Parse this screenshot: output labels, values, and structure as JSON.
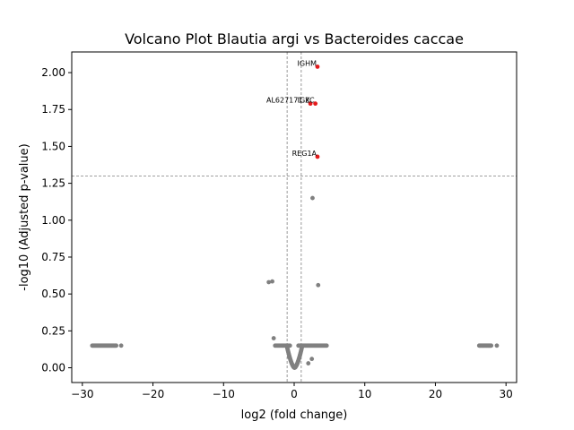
{
  "chart_data": {
    "type": "scatter",
    "title": "Volcano Plot Blautia argi vs Bacteroides caccae",
    "xlabel": "log2 (fold change)",
    "ylabel": "-log10 (Adjusted p-value)",
    "xlim": [
      -31.5,
      31.5
    ],
    "ylim": [
      -0.1,
      2.14
    ],
    "xticks": [
      -30,
      -20,
      -10,
      0,
      10,
      20,
      30
    ],
    "xtick_labels": [
      "−30",
      "−20",
      "−10",
      "0",
      "10",
      "20",
      "30"
    ],
    "yticks": [
      0.0,
      0.25,
      0.5,
      0.75,
      1.0,
      1.25,
      1.5,
      1.75,
      2.0
    ],
    "ytick_labels": [
      "0.00",
      "0.25",
      "0.50",
      "0.75",
      "1.00",
      "1.25",
      "1.50",
      "1.75",
      "2.00"
    ],
    "grid": false,
    "thresholds": {
      "x": [
        -1,
        1
      ],
      "y": 1.3
    },
    "colors": {
      "significant": "#e41a1c",
      "nonsignificant": "#808080",
      "threshold": "#808080"
    },
    "significant_points": [
      {
        "label": "IGHM",
        "x": 3.3,
        "y": 2.04
      },
      {
        "label": "AL627171.2",
        "x": 2.3,
        "y": 1.79
      },
      {
        "label": "IGKC",
        "x": 3.0,
        "y": 1.79
      },
      {
        "label": "REG1A",
        "x": 3.3,
        "y": 1.43
      }
    ],
    "nonsignificant_points": [
      {
        "x": 2.6,
        "y": 1.15
      },
      {
        "x": -3.6,
        "y": 0.58
      },
      {
        "x": -3.1,
        "y": 0.585
      },
      {
        "x": 3.4,
        "y": 0.56
      },
      {
        "x": -2.9,
        "y": 0.2
      },
      {
        "x": 2.5,
        "y": 0.06
      },
      {
        "x": 2.0,
        "y": 0.03
      }
    ],
    "clusters": [
      {
        "x_from": -28.6,
        "x_to": -25.2,
        "y": 0.15,
        "count": 30
      },
      {
        "x": -24.5,
        "y": 0.15
      },
      {
        "x_from": 26.2,
        "x_to": 27.9,
        "y": 0.15,
        "count": 18
      },
      {
        "x": 28.7,
        "y": 0.15
      },
      {
        "x_from": -2.7,
        "x_to": -0.6,
        "y": 0.15,
        "count": 14
      },
      {
        "x_from": 0.6,
        "x_to": 4.6,
        "y": 0.15,
        "count": 28
      }
    ],
    "central_curve": {
      "x_from": -1.0,
      "x_to": 1.1,
      "y_top": 0.14,
      "count": 60
    }
  }
}
